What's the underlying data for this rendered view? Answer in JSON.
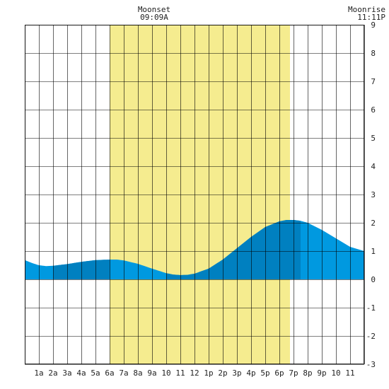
{
  "chart_data": {
    "type": "area",
    "title": "",
    "xlabel": "",
    "ylabel": "",
    "x_range_hours": [
      0,
      24
    ],
    "ylim": [
      -3,
      9
    ],
    "grid": true,
    "x_tick_labels": [
      "1a",
      "2a",
      "3a",
      "4a",
      "5a",
      "6a",
      "7a",
      "8a",
      "9a",
      "10",
      "11",
      "12",
      "1p",
      "2p",
      "3p",
      "4p",
      "5p",
      "6p",
      "7p",
      "8p",
      "9p",
      "10",
      "11"
    ],
    "y_tick_labels": [
      "-3",
      "-2",
      "-1",
      "0",
      "1",
      "2",
      "3",
      "4",
      "5",
      "6",
      "7",
      "8",
      "9"
    ],
    "daylight_band_hours": [
      6.0,
      18.75
    ],
    "tide_series": {
      "x_hours": [
        0,
        0.5,
        1,
        1.5,
        2,
        3,
        4,
        5,
        6,
        6.5,
        7,
        8,
        9,
        10,
        10.5,
        11,
        11.5,
        12,
        13,
        14,
        15,
        16,
        17,
        18,
        18.5,
        19,
        19.5,
        20,
        21,
        22,
        23,
        24
      ],
      "y_values": [
        0.68,
        0.58,
        0.5,
        0.47,
        0.48,
        0.54,
        0.62,
        0.68,
        0.7,
        0.7,
        0.67,
        0.55,
        0.38,
        0.22,
        0.17,
        0.15,
        0.16,
        0.2,
        0.38,
        0.7,
        1.1,
        1.5,
        1.85,
        2.05,
        2.1,
        2.1,
        2.07,
        2.0,
        1.75,
        1.45,
        1.15,
        1.0
      ]
    },
    "dark_shading_segments_hours": [
      [
        2,
        6
      ],
      [
        10,
        19.5
      ]
    ],
    "colors": {
      "background": "#ffffff",
      "grid": "#000000",
      "daylight": "#f5ec8f",
      "tide_light": "#0099e0",
      "tide_dark": "#0080c0"
    },
    "annotations": [
      {
        "label": "Moonset",
        "time": "09:09A",
        "align": "center"
      },
      {
        "label": "Moonrise",
        "time": "11:11P",
        "align": "right"
      }
    ]
  }
}
